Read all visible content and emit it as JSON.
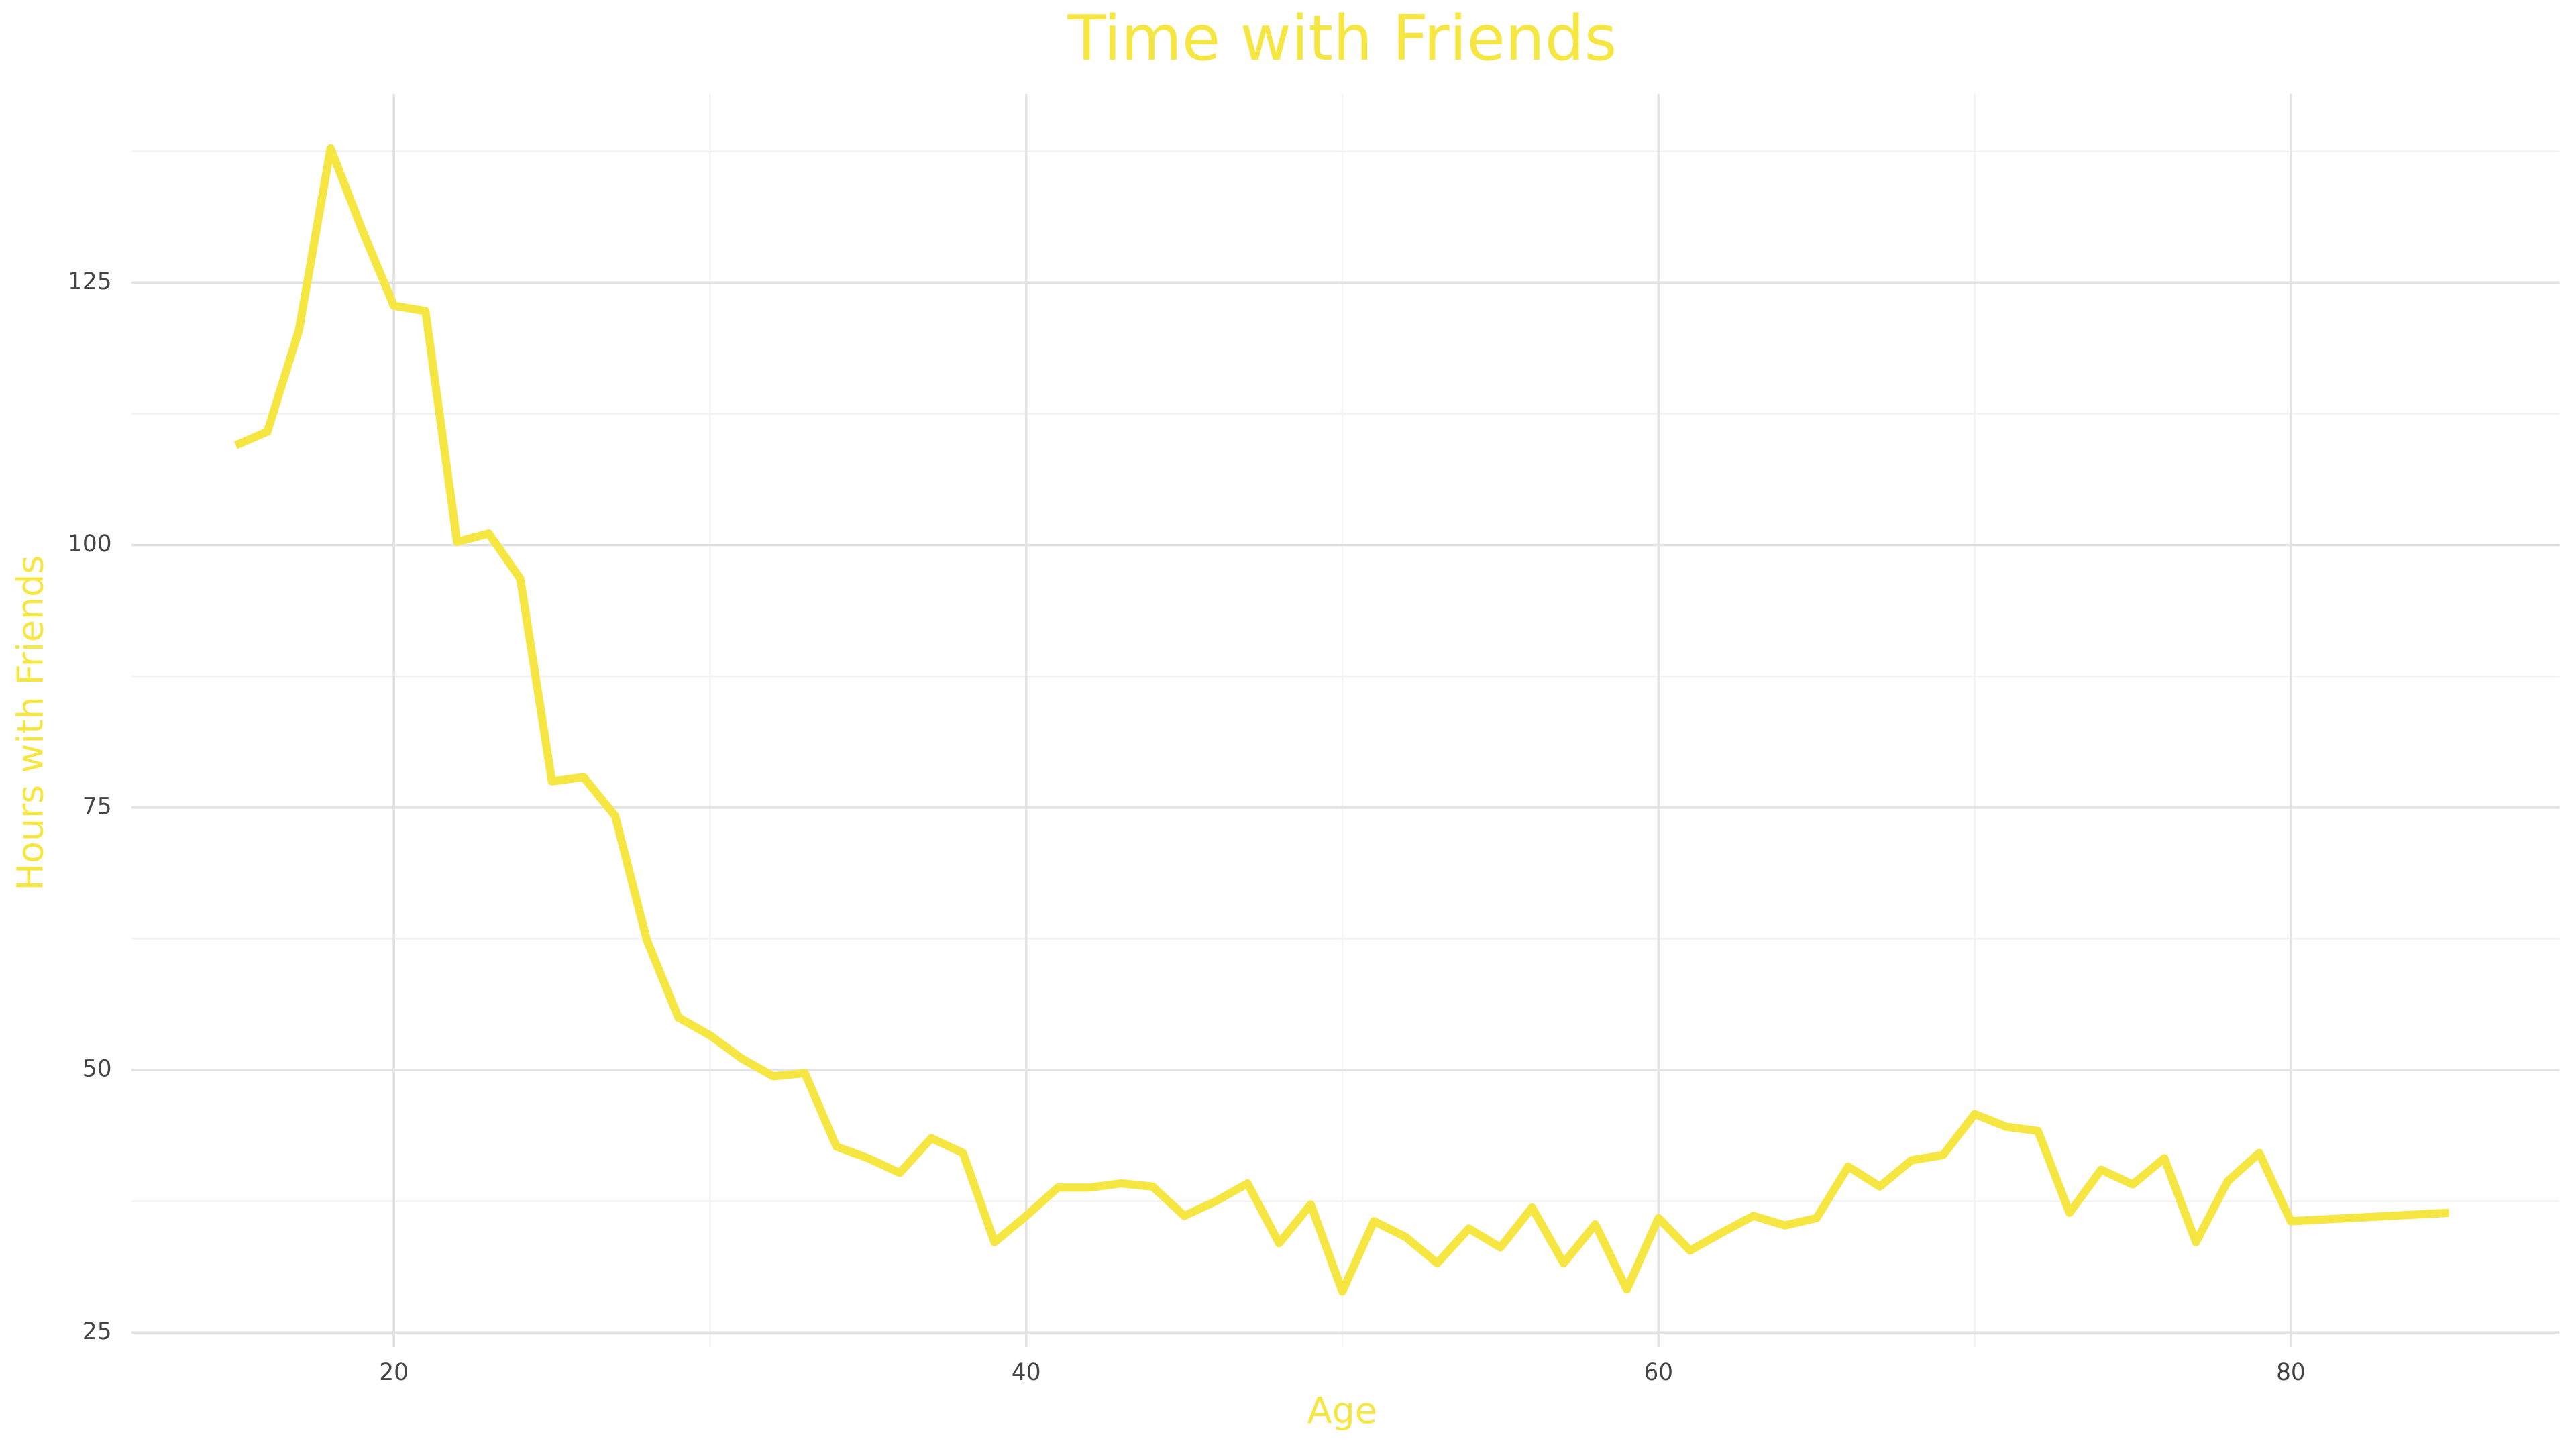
{
  "chart_data": {
    "type": "line",
    "title": "Time with Friends",
    "x_label": "Age",
    "y_label": "Hours with Friends",
    "x": [
      15,
      16,
      17,
      18,
      19,
      20,
      21,
      22,
      23,
      24,
      25,
      26,
      27,
      28,
      29,
      30,
      31,
      32,
      33,
      34,
      35,
      36,
      37,
      38,
      39,
      40,
      41,
      42,
      43,
      44,
      45,
      46,
      47,
      48,
      49,
      50,
      51,
      52,
      53,
      54,
      55,
      56,
      57,
      58,
      59,
      60,
      61,
      62,
      63,
      64,
      65,
      66,
      67,
      68,
      69,
      70,
      71,
      72,
      73,
      74,
      75,
      76,
      77,
      78,
      79,
      80,
      85
    ],
    "series": [
      {
        "name": "Hours with Friends",
        "color": "#f5e642",
        "values": [
          109.5,
          110.8,
          120.5,
          137.8,
          130,
          122.8,
          122.3,
          100.3,
          101.1,
          96.8,
          77.5,
          77.9,
          74.2,
          62.4,
          55,
          53.3,
          51.1,
          49.4,
          49.7,
          42.7,
          41.6,
          40.2,
          43.5,
          42.1,
          33.6,
          36.1,
          38.8,
          38.8,
          39.2,
          38.9,
          36.1,
          37.5,
          39.2,
          33.5,
          37.2,
          28.9,
          35.6,
          34.1,
          31.6,
          34.9,
          33.1,
          36.9,
          31.6,
          35.3,
          29.1,
          35.9,
          32.8,
          34.5,
          36.1,
          35.2,
          35.9,
          40.8,
          38.9,
          41.4,
          41.9,
          45.8,
          44.6,
          44.2,
          36.4,
          40.5,
          39.1,
          41.6,
          33.6,
          39.4,
          42.1,
          35.6,
          36.4
        ]
      }
    ],
    "xlim": [
      11.7,
      88.5
    ],
    "ylim": [
      23.6,
      143
    ],
    "xticks": [
      20,
      40,
      60,
      80
    ],
    "yticks": [
      25,
      50,
      75,
      100,
      125
    ],
    "x_minor_ticks": [
      30,
      50,
      70
    ],
    "y_minor_ticks": [
      37.5,
      62.5,
      87.5,
      112.5,
      137.5
    ],
    "grid": true
  }
}
